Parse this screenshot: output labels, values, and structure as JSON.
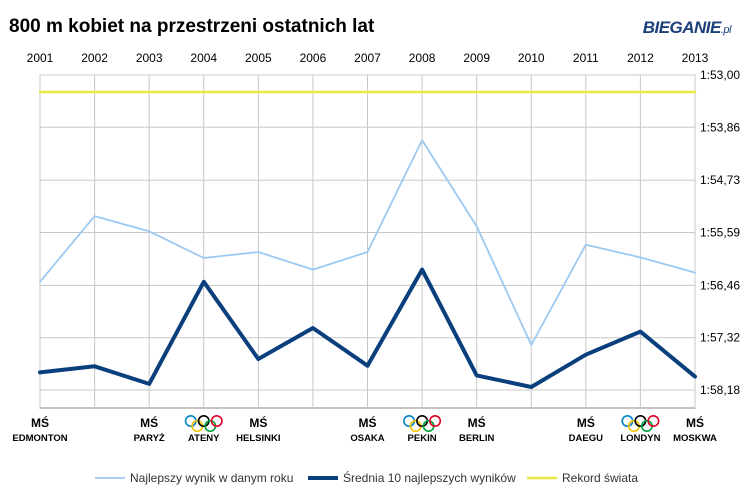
{
  "title": "800 m kobiet na przestrzeni ostatnich lat",
  "brand": {
    "main": "BIEGANIE",
    "suffix": ".pl"
  },
  "colors": {
    "best": "#9cc9f2",
    "avg": "#0a3f7d",
    "record": "#e8e845",
    "grid": "#c8c8c8"
  },
  "chart_data": {
    "type": "line",
    "x": [
      "2001",
      "2002",
      "2003",
      "2004",
      "2005",
      "2006",
      "2007",
      "2008",
      "2009",
      "2010",
      "2011",
      "2012",
      "2013"
    ],
    "y_ticks": [
      "1:53,00",
      "1:53,86",
      "1:54,73",
      "1:55,59",
      "1:56,46",
      "1:57,32",
      "1:58,18"
    ],
    "y_tick_values": [
      113.0,
      113.86,
      114.73,
      115.59,
      116.46,
      117.32,
      118.18
    ],
    "ylim": [
      113.0,
      118.18
    ],
    "y_inverted": true,
    "series": [
      {
        "name": "Najlepszy wynik w danym roku",
        "color_key": "best",
        "values": [
          116.4,
          115.32,
          115.57,
          116.01,
          115.91,
          116.2,
          115.91,
          114.07,
          115.49,
          117.44,
          115.79,
          116.0,
          116.25
        ]
      },
      {
        "name": "Średnia 10 najlepszych wyników",
        "color_key": "avg",
        "values": [
          117.89,
          117.79,
          118.08,
          116.4,
          117.67,
          117.16,
          117.78,
          116.2,
          117.94,
          118.13,
          117.6,
          117.22,
          117.96
        ]
      },
      {
        "name": "Rekord świata",
        "color_key": "record",
        "values": [
          113.28,
          113.28,
          113.28,
          113.28,
          113.28,
          113.28,
          113.28,
          113.28,
          113.28,
          113.28,
          113.28,
          113.28,
          113.28
        ]
      }
    ],
    "events": [
      {
        "index": 0,
        "label": "MŚ",
        "city": "EDMONTON",
        "rings": false
      },
      {
        "index": 2,
        "label": "MŚ",
        "city": "PARYŻ",
        "rings": false
      },
      {
        "index": 3,
        "label": "",
        "city": "ATENY",
        "rings": true
      },
      {
        "index": 4,
        "label": "MŚ",
        "city": "HELSINKI",
        "rings": false
      },
      {
        "index": 6,
        "label": "MŚ",
        "city": "OSAKA",
        "rings": false
      },
      {
        "index": 7,
        "label": "",
        "city": "PEKIN",
        "rings": true
      },
      {
        "index": 8,
        "label": "MŚ",
        "city": "BERLIN",
        "rings": false
      },
      {
        "index": 10,
        "label": "MŚ",
        "city": "DAEGU",
        "rings": false
      },
      {
        "index": 11,
        "label": "",
        "city": "LONDYN",
        "rings": true
      },
      {
        "index": 12,
        "label": "MŚ",
        "city": "MOSKWA",
        "rings": false
      }
    ],
    "grid": true,
    "legend_position": "bottom"
  }
}
